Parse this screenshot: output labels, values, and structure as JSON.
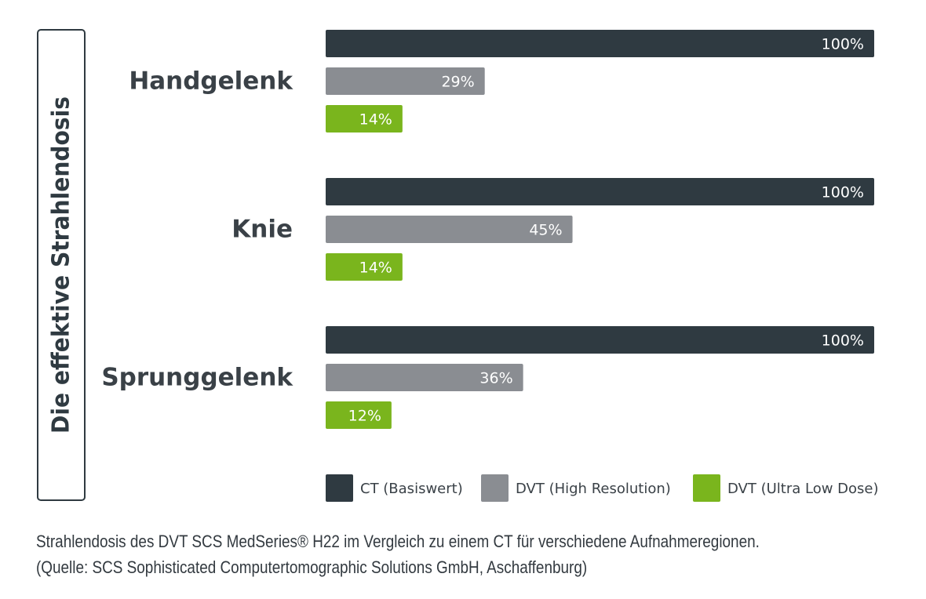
{
  "chart_data": {
    "type": "bar",
    "orientation": "horizontal",
    "ylabel": "Die effektive Strahlendosis",
    "categories": [
      "Handgelenk",
      "Knie",
      "Sprunggelenk"
    ],
    "series": [
      {
        "name": "CT (Basiswert)",
        "color": "#2f3a41",
        "values": [
          100,
          100,
          100
        ],
        "labels": [
          "100%",
          "100%",
          "100%"
        ]
      },
      {
        "name": "DVT (High Resolution)",
        "color": "#8a8d92",
        "values": [
          29,
          45,
          36
        ],
        "labels": [
          "29%",
          "45%",
          "36%"
        ]
      },
      {
        "name": "DVT (Ultra Low Dose)",
        "color": "#7ab51d",
        "values": [
          14,
          14,
          12
        ],
        "labels": [
          "14%",
          "14%",
          "12%"
        ]
      }
    ],
    "xlim": [
      0,
      100
    ],
    "grid": false,
    "legend_position": "bottom-right"
  },
  "caption": {
    "line1": "Strahlendosis des DVT SCS MedSeries® H22 im Vergleich zu einem CT für verschiedene Aufnahmeregionen.",
    "line2": "(Quelle: SCS Sophisticated Computertomographic Solutions GmbH, Aschaffenburg)"
  }
}
